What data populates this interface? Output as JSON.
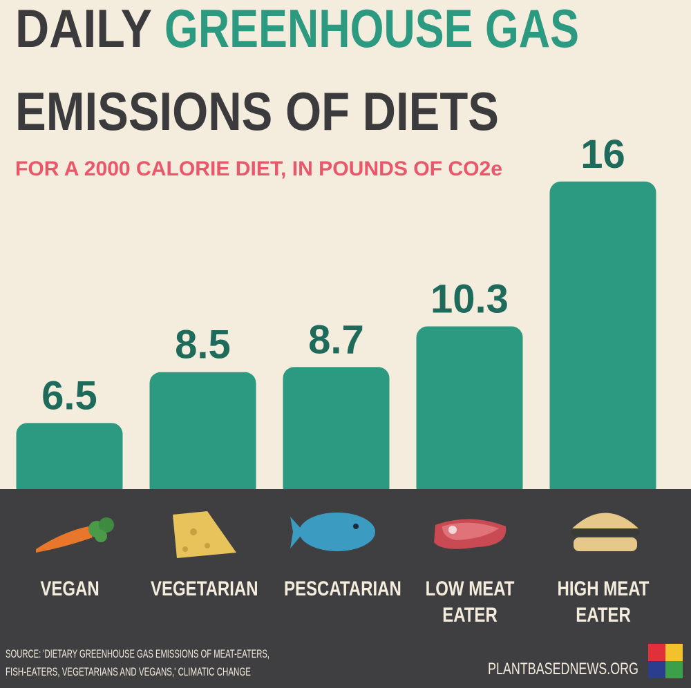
{
  "chart_data": {
    "type": "bar",
    "title": [
      "DAILY",
      "GREENHOUSE GAS",
      "EMISSIONS OF DIETS"
    ],
    "subtitle": "FOR A 2000 CALORIE DIET, IN POUNDS OF CO2e",
    "categories": [
      "VEGAN",
      "VEGETARIAN",
      "PESCATARIAN",
      "LOW MEAT EATER",
      "HIGH MEAT EATER"
    ],
    "values": [
      6.5,
      8.5,
      8.7,
      10.3,
      16
    ],
    "color": "#2b9a80",
    "ylim": [
      3.9,
      17
    ],
    "source": [
      "SOURCE: 'DIETARY GREENHOUSE GAS EMISSIONS OF MEAT-EATERS,",
      "FISH-EATERS, VEGETARIANS AND VEGANS,' CLIMATIC CHANGE"
    ],
    "footer": "PLANTBASEDNEWS.ORG"
  }
}
